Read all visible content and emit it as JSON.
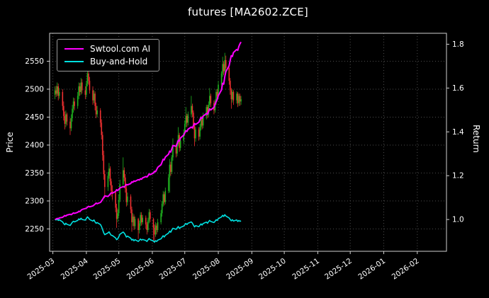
{
  "chart_data": {
    "type": "candlestick",
    "title": "futures [MA2602.ZCE]",
    "ylabel_left": "Price",
    "ylabel_right": "Return",
    "x_ticks": [
      "2025-03",
      "2025-04",
      "2025-05",
      "2025-06",
      "2025-07",
      "2025-08",
      "2025-09",
      "2025-10",
      "2025-11",
      "2025-12",
      "2026-01",
      "2026-02"
    ],
    "x_range": [
      "2025-02-26",
      "2026-02-28"
    ],
    "y_ticks_left": [
      2250,
      2300,
      2350,
      2400,
      2450,
      2500,
      2550
    ],
    "y_ticks_right": [
      1.0,
      1.2,
      1.4,
      1.6,
      1.8
    ],
    "ylim_left": [
      2210,
      2600
    ],
    "ylim_right": [
      0.855,
      1.85
    ],
    "grid": {
      "visible": true,
      "style": "dotted",
      "color": "#4d4d4d"
    },
    "colors": {
      "up": "#1fb41f",
      "down": "#f03030",
      "spine": "#cfcfcf",
      "text": "#ffffff",
      "background": "#000000"
    },
    "legend_position": "upper-left",
    "candles_start_date": "2025-03-03",
    "candles_frequency": "weekdays",
    "candles_ohlc": [
      [
        2490,
        2505,
        2482,
        2498
      ],
      [
        2498,
        2506,
        2486,
        2492
      ],
      [
        2492,
        2512,
        2488,
        2505
      ],
      [
        2505,
        2510,
        2480,
        2488
      ],
      [
        2488,
        2502,
        2483,
        2495
      ],
      [
        2495,
        2500,
        2462,
        2470
      ],
      [
        2470,
        2478,
        2444,
        2452
      ],
      [
        2452,
        2460,
        2428,
        2438
      ],
      [
        2438,
        2462,
        2432,
        2455
      ],
      [
        2455,
        2458,
        2435,
        2442
      ],
      [
        2442,
        2448,
        2418,
        2430
      ],
      [
        2430,
        2455,
        2425,
        2448
      ],
      [
        2448,
        2472,
        2442,
        2465
      ],
      [
        2465,
        2485,
        2458,
        2478
      ],
      [
        2478,
        2484,
        2462,
        2470
      ],
      [
        2470,
        2495,
        2465,
        2488
      ],
      [
        2488,
        2512,
        2482,
        2505
      ],
      [
        2505,
        2511,
        2488,
        2495
      ],
      [
        2495,
        2520,
        2490,
        2512
      ],
      [
        2512,
        2518,
        2492,
        2498
      ],
      [
        2498,
        2505,
        2482,
        2490
      ],
      [
        2490,
        2515,
        2485,
        2510
      ],
      [
        2510,
        2542,
        2505,
        2528
      ],
      [
        2528,
        2535,
        2508,
        2515
      ],
      [
        2515,
        2522,
        2492,
        2498
      ],
      [
        2498,
        2505,
        2472,
        2480
      ],
      [
        2480,
        2498,
        2475,
        2492
      ],
      [
        2492,
        2496,
        2462,
        2470
      ],
      [
        2470,
        2476,
        2448,
        2455
      ],
      [
        2455,
        2470,
        2450,
        2462
      ],
      [
        2462,
        2466,
        2432,
        2440
      ],
      [
        2440,
        2446,
        2410,
        2418
      ],
      [
        2418,
        2424,
        2372,
        2382
      ],
      [
        2382,
        2390,
        2338,
        2348
      ],
      [
        2348,
        2355,
        2305,
        2325
      ],
      [
        2325,
        2352,
        2318,
        2345
      ],
      [
        2345,
        2368,
        2340,
        2358
      ],
      [
        2358,
        2362,
        2328,
        2335
      ],
      [
        2335,
        2340,
        2308,
        2318
      ],
      [
        2318,
        2328,
        2302,
        2315
      ],
      [
        2315,
        2318,
        2280,
        2288
      ],
      [
        2288,
        2295,
        2252,
        2268
      ],
      [
        2268,
        2285,
        2262,
        2278
      ],
      [
        2278,
        2312,
        2272,
        2302
      ],
      [
        2302,
        2338,
        2298,
        2330
      ],
      [
        2330,
        2378,
        2326,
        2355
      ],
      [
        2355,
        2360,
        2335,
        2342
      ],
      [
        2342,
        2348,
        2315,
        2322
      ],
      [
        2322,
        2328,
        2290,
        2298
      ],
      [
        2298,
        2315,
        2292,
        2308
      ],
      [
        2308,
        2312,
        2278,
        2285
      ],
      [
        2285,
        2290,
        2245,
        2262
      ],
      [
        2262,
        2278,
        2255,
        2272
      ],
      [
        2272,
        2276,
        2248,
        2255
      ],
      [
        2255,
        2272,
        2250,
        2268
      ],
      [
        2268,
        2270,
        2232,
        2248
      ],
      [
        2248,
        2265,
        2242,
        2260
      ],
      [
        2260,
        2280,
        2255,
        2275
      ],
      [
        2275,
        2280,
        2256,
        2262
      ],
      [
        2262,
        2275,
        2258,
        2270
      ],
      [
        2270,
        2274,
        2250,
        2258
      ],
      [
        2258,
        2262,
        2240,
        2248
      ],
      [
        2248,
        2270,
        2244,
        2265
      ],
      [
        2265,
        2286,
        2260,
        2280
      ],
      [
        2280,
        2284,
        2262,
        2268
      ],
      [
        2268,
        2270,
        2230,
        2252
      ],
      [
        2252,
        2258,
        2225,
        2240
      ],
      [
        2240,
        2262,
        2236,
        2256
      ],
      [
        2256,
        2260,
        2240,
        2248
      ],
      [
        2248,
        2268,
        2244,
        2262
      ],
      [
        2262,
        2284,
        2258,
        2278
      ],
      [
        2278,
        2300,
        2272,
        2295
      ],
      [
        2295,
        2318,
        2290,
        2312
      ],
      [
        2312,
        2316,
        2292,
        2298
      ],
      [
        2298,
        2324,
        2294,
        2318
      ],
      [
        2318,
        2348,
        2314,
        2342
      ],
      [
        2342,
        2375,
        2315,
        2365
      ],
      [
        2365,
        2370,
        2345,
        2352
      ],
      [
        2352,
        2382,
        2348,
        2378
      ],
      [
        2378,
        2412,
        2372,
        2398
      ],
      [
        2398,
        2402,
        2378,
        2385
      ],
      [
        2385,
        2408,
        2380,
        2402
      ],
      [
        2402,
        2432,
        2398,
        2418
      ],
      [
        2418,
        2422,
        2388,
        2395
      ],
      [
        2395,
        2412,
        2390,
        2408
      ],
      [
        2408,
        2428,
        2402,
        2422
      ],
      [
        2422,
        2444,
        2418,
        2438
      ],
      [
        2438,
        2468,
        2432,
        2452
      ],
      [
        2452,
        2456,
        2432,
        2440
      ],
      [
        2440,
        2460,
        2435,
        2455
      ],
      [
        2455,
        2488,
        2450,
        2470
      ],
      [
        2470,
        2474,
        2450,
        2458
      ],
      [
        2458,
        2462,
        2428,
        2435
      ],
      [
        2435,
        2440,
        2398,
        2412
      ],
      [
        2412,
        2432,
        2406,
        2428
      ],
      [
        2428,
        2432,
        2408,
        2415
      ],
      [
        2415,
        2438,
        2410,
        2432
      ],
      [
        2432,
        2452,
        2426,
        2448
      ],
      [
        2448,
        2452,
        2428,
        2435
      ],
      [
        2435,
        2458,
        2430,
        2452
      ],
      [
        2452,
        2472,
        2446,
        2468
      ],
      [
        2468,
        2472,
        2448,
        2455
      ],
      [
        2455,
        2478,
        2450,
        2472
      ],
      [
        2472,
        2502,
        2468,
        2488
      ],
      [
        2488,
        2492,
        2468,
        2475
      ],
      [
        2475,
        2480,
        2455,
        2462
      ],
      [
        2462,
        2482,
        2458,
        2478
      ],
      [
        2478,
        2500,
        2472,
        2495
      ],
      [
        2495,
        2500,
        2480,
        2488
      ],
      [
        2488,
        2515,
        2484,
        2508
      ],
      [
        2508,
        2532,
        2502,
        2528
      ],
      [
        2528,
        2558,
        2522,
        2545
      ],
      [
        2545,
        2550,
        2525,
        2532
      ],
      [
        2532,
        2565,
        2528,
        2552
      ],
      [
        2552,
        2560,
        2530,
        2538
      ],
      [
        2538,
        2542,
        2508,
        2515
      ],
      [
        2515,
        2520,
        2490,
        2498
      ],
      [
        2498,
        2502,
        2465,
        2482
      ],
      [
        2482,
        2500,
        2476,
        2495
      ],
      [
        2495,
        2498,
        2472,
        2480
      ],
      [
        2480,
        2496,
        2474,
        2492
      ],
      [
        2492,
        2495,
        2468,
        2475
      ],
      [
        2475,
        2492,
        2470,
        2488
      ],
      [
        2488,
        2492,
        2470,
        2478
      ],
      [
        2478,
        2488,
        2472,
        2482
      ]
    ],
    "series": [
      {
        "name": "Swtool.com AI",
        "color": "#ff00ff",
        "axis": "right",
        "values": [
          1.0,
          1.002,
          1.005,
          1.004,
          1.007,
          1.01,
          1.014,
          1.018,
          1.016,
          1.02,
          1.024,
          1.022,
          1.026,
          1.03,
          1.028,
          1.033,
          1.038,
          1.036,
          1.042,
          1.046,
          1.05,
          1.052,
          1.056,
          1.06,
          1.058,
          1.062,
          1.066,
          1.07,
          1.075,
          1.072,
          1.078,
          1.084,
          1.092,
          1.1,
          1.108,
          1.105,
          1.11,
          1.116,
          1.122,
          1.12,
          1.128,
          1.136,
          1.132,
          1.138,
          1.144,
          1.15,
          1.148,
          1.154,
          1.16,
          1.158,
          1.164,
          1.172,
          1.17,
          1.176,
          1.174,
          1.182,
          1.18,
          1.186,
          1.184,
          1.19,
          1.196,
          1.194,
          1.2,
          1.208,
          1.205,
          1.212,
          1.22,
          1.218,
          1.228,
          1.238,
          1.25,
          1.262,
          1.275,
          1.272,
          1.285,
          1.298,
          1.312,
          1.308,
          1.322,
          1.338,
          1.334,
          1.348,
          1.362,
          1.358,
          1.372,
          1.385,
          1.395,
          1.405,
          1.402,
          1.412,
          1.422,
          1.418,
          1.428,
          1.438,
          1.434,
          1.444,
          1.455,
          1.466,
          1.462,
          1.472,
          1.484,
          1.48,
          1.492,
          1.505,
          1.5,
          1.512,
          1.525,
          1.538,
          1.548,
          1.565,
          1.592,
          1.622,
          1.618,
          1.652,
          1.675,
          1.702,
          1.726,
          1.748,
          1.744,
          1.762,
          1.776,
          1.772,
          1.79,
          1.802,
          1.81
        ]
      },
      {
        "name": "Buy-and-Hold",
        "color": "#00e0e0",
        "axis": "right",
        "values": [
          1.0,
          0.998,
          1.003,
          0.996,
          0.999,
          0.989,
          0.982,
          0.976,
          0.983,
          0.978,
          0.973,
          0.98,
          0.987,
          0.992,
          0.989,
          0.996,
          1.003,
          0.999,
          1.006,
          1.0,
          0.997,
          1.005,
          1.012,
          1.007,
          1.0,
          0.993,
          0.998,
          0.989,
          0.983,
          0.986,
          0.977,
          0.968,
          0.954,
          0.94,
          0.931,
          0.939,
          0.944,
          0.935,
          0.928,
          0.927,
          0.916,
          0.908,
          0.912,
          0.922,
          0.933,
          0.943,
          0.938,
          0.93,
          0.92,
          0.924,
          0.915,
          0.906,
          0.91,
          0.903,
          0.908,
          0.9,
          0.905,
          0.911,
          0.906,
          0.909,
          0.904,
          0.9,
          0.907,
          0.913,
          0.908,
          0.902,
          0.897,
          0.903,
          0.9,
          0.906,
          0.912,
          0.919,
          0.926,
          0.92,
          0.928,
          0.938,
          0.947,
          0.942,
          0.952,
          0.96,
          0.955,
          0.962,
          0.968,
          0.959,
          0.964,
          0.97,
          0.976,
          0.982,
          0.977,
          0.983,
          0.989,
          0.984,
          0.975,
          0.966,
          0.972,
          0.967,
          0.974,
          0.98,
          0.975,
          0.982,
          0.988,
          0.983,
          0.99,
          0.996,
          0.991,
          0.986,
          0.992,
          0.999,
          0.996,
          1.004,
          1.012,
          1.019,
          1.014,
          1.022,
          1.016,
          1.007,
          1.0,
          0.994,
          0.999,
          0.993,
          0.998,
          0.991,
          0.996,
          0.992,
          0.994
        ]
      }
    ]
  }
}
